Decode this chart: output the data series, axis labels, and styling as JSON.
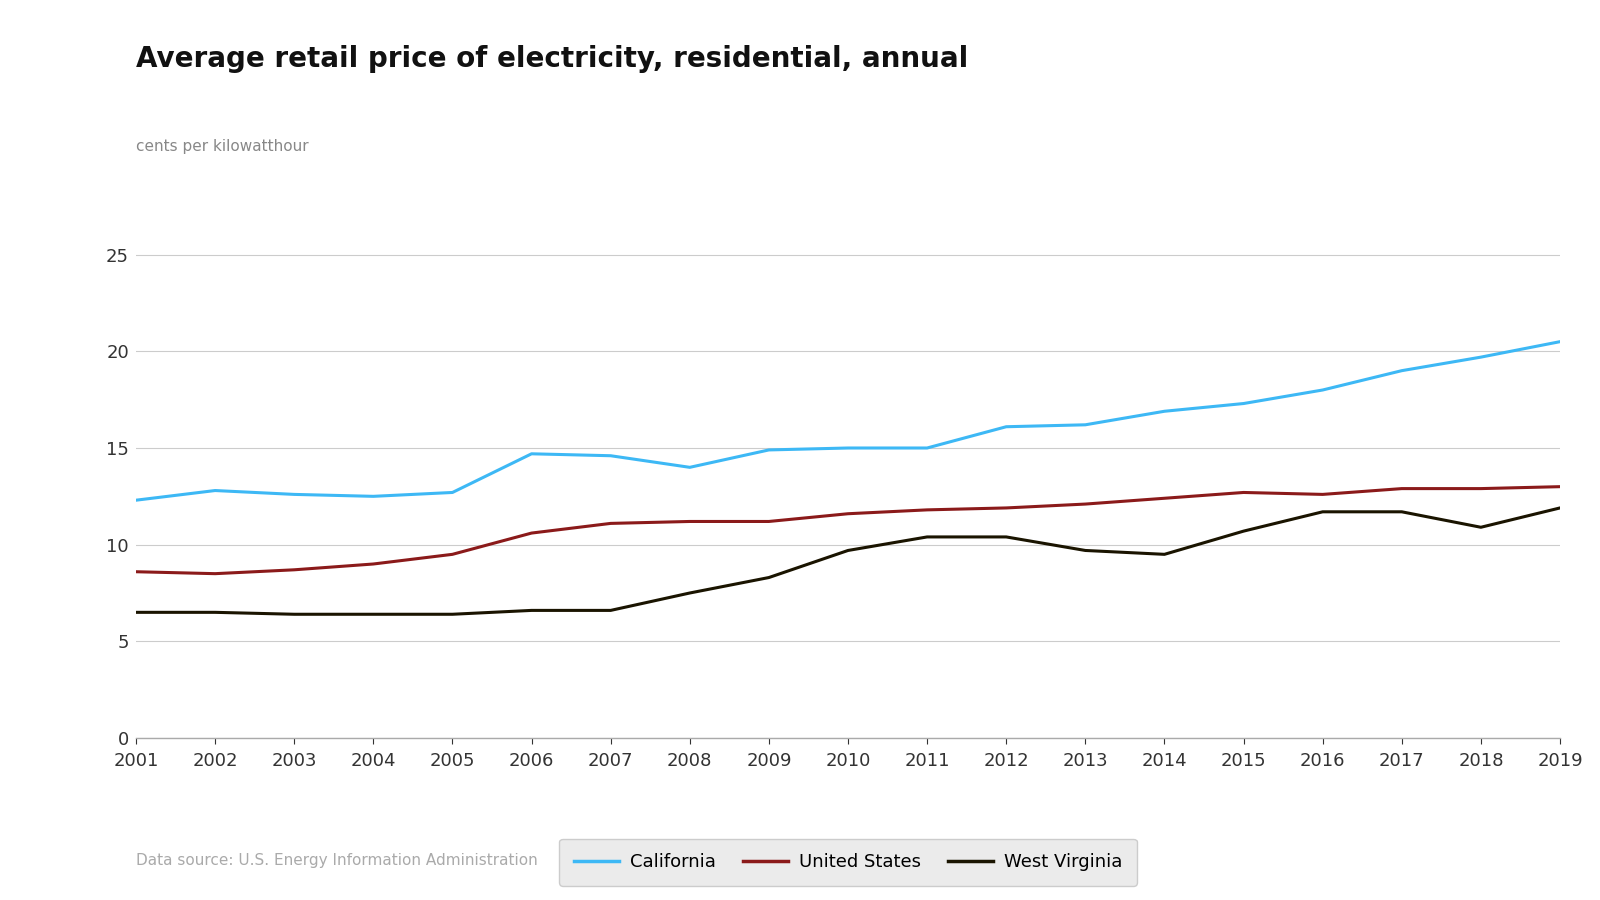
{
  "title": "Average retail price of electricity, residential, annual",
  "ylabel": "cents per kilowatthour",
  "source": "Data source: U.S. Energy Information Administration",
  "years": [
    2001,
    2002,
    2003,
    2004,
    2005,
    2006,
    2007,
    2008,
    2009,
    2010,
    2011,
    2012,
    2013,
    2014,
    2015,
    2016,
    2017,
    2018,
    2019
  ],
  "california": [
    12.3,
    12.8,
    12.6,
    12.5,
    12.7,
    14.7,
    14.6,
    14.0,
    14.9,
    15.0,
    15.0,
    16.1,
    16.2,
    16.9,
    17.3,
    18.0,
    19.0,
    19.7,
    20.5
  ],
  "us": [
    8.6,
    8.5,
    8.7,
    9.0,
    9.5,
    10.6,
    11.1,
    11.2,
    11.2,
    11.6,
    11.8,
    11.9,
    12.1,
    12.4,
    12.7,
    12.6,
    12.9,
    12.9,
    13.0
  ],
  "wv": [
    6.5,
    6.5,
    6.4,
    6.4,
    6.4,
    6.6,
    6.6,
    7.5,
    8.3,
    9.7,
    10.4,
    10.4,
    9.7,
    9.5,
    10.7,
    11.7,
    11.7,
    10.9,
    11.9
  ],
  "california_color": "#3db8f5",
  "us_color": "#8b1a1a",
  "wv_color": "#1a1400",
  "line_width": 2.2,
  "background_color": "#ffffff",
  "grid_color": "#cccccc",
  "yticks": [
    0,
    5,
    10,
    15,
    20,
    25
  ],
  "ylim": [
    0,
    27
  ],
  "title_fontsize": 20,
  "ylabel_fontsize": 11,
  "tick_fontsize": 13,
  "legend_fontsize": 13,
  "source_fontsize": 11
}
